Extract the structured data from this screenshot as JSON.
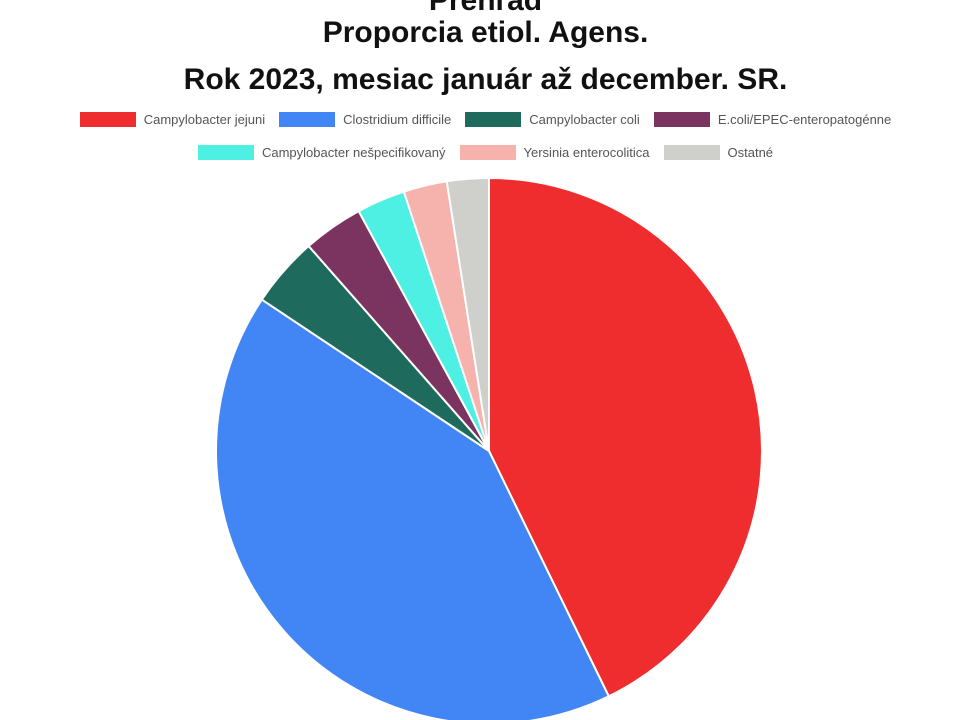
{
  "chart_data": {
    "type": "pie",
    "title_top": "Prehľad",
    "title": "Proporcia etiol. Agens.",
    "subtitle": "Rok 2023, mesiac január až december. SR.",
    "legend_position": "top",
    "slices": [
      {
        "label": "Campylobacter jejuni",
        "value": 43.2,
        "color": "#ef2d2f"
      },
      {
        "label": "Clostridium difficile",
        "value": 42.0,
        "color": "#4285f4"
      },
      {
        "label": "Campylobacter coli",
        "value": 4.2,
        "color": "#1e6b5e"
      },
      {
        "label": "E.coli/EPEC-enteropatogénne",
        "value": 3.6,
        "color": "#7b3360"
      },
      {
        "label": "Campylobacter nešpecifikovaný",
        "value": 2.9,
        "color": "#4df0e2"
      },
      {
        "label": "Yersinia enterocolitica",
        "value": 2.6,
        "color": "#f6b3ae"
      },
      {
        "label": "Ostatné",
        "value": 2.5,
        "color": "#cfcfcc"
      }
    ]
  }
}
